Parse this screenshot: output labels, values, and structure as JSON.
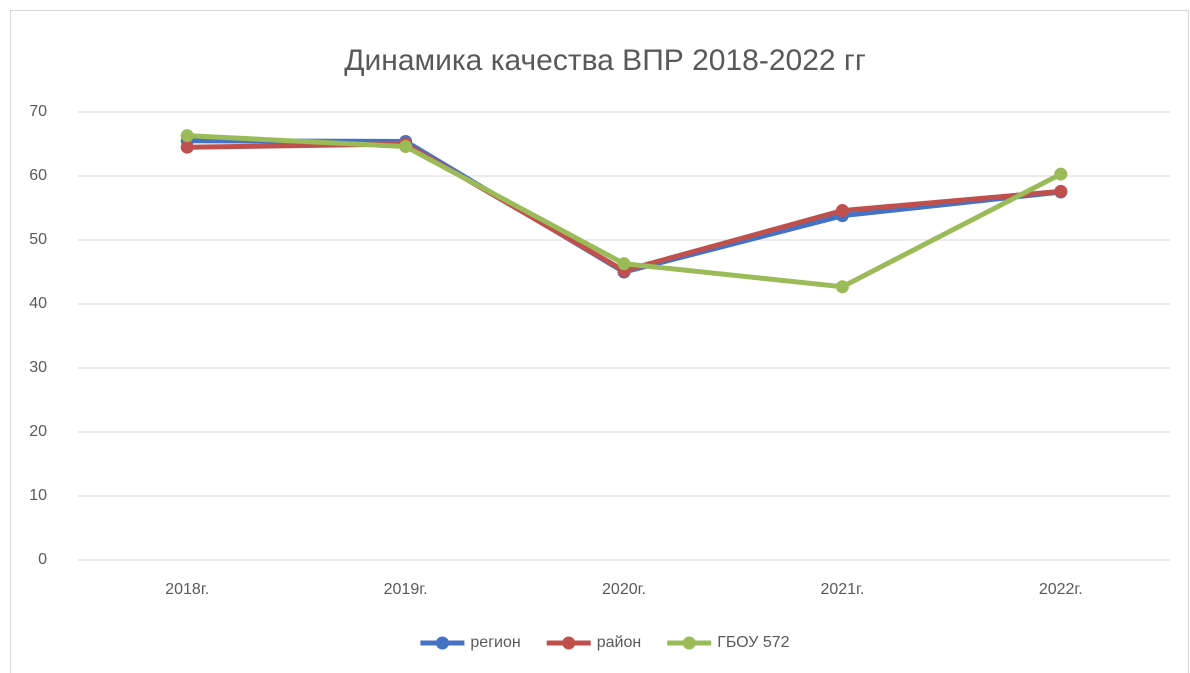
{
  "chart_data": {
    "type": "line",
    "title": "Динамика качества ВПР 2018-2022 гг",
    "categories": [
      "2018г.",
      "2019г.",
      "2020г.",
      "2021г.",
      "2022г."
    ],
    "series": [
      {
        "name": "регион",
        "color": "#4472c4",
        "values": [
          65.5,
          65.4,
          45,
          53.8,
          57.5
        ]
      },
      {
        "name": "район",
        "color": "#c0504d",
        "values": [
          64.5,
          65,
          45.2,
          54.6,
          57.6
        ]
      },
      {
        "name": "ГБОУ 572",
        "color": "#9bbb59",
        "values": [
          66.3,
          64.6,
          46.3,
          42.7,
          60.3
        ]
      }
    ],
    "ylim": [
      0,
      70
    ],
    "yticks": [
      0,
      10,
      20,
      30,
      40,
      50,
      60,
      70
    ],
    "grid": true,
    "legend": "bottom"
  }
}
